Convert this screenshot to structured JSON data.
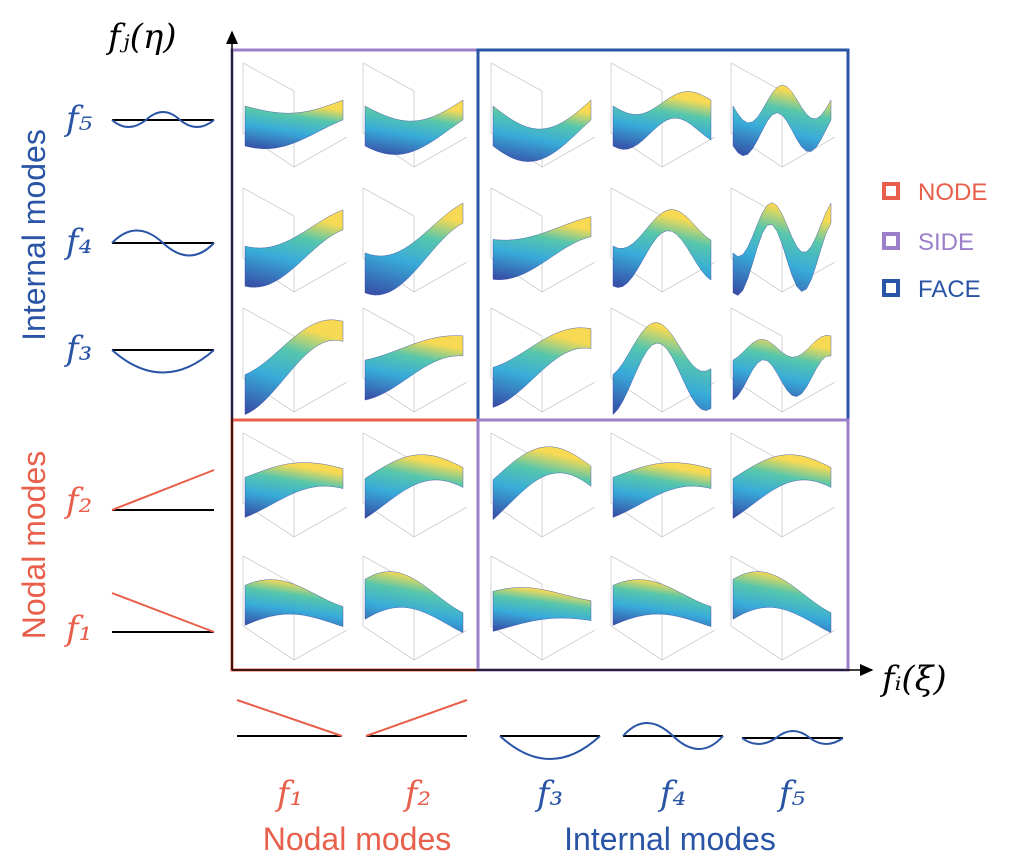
{
  "axes": {
    "y_label": "fⱼ(η)",
    "x_label": "fᵢ(ξ)"
  },
  "row_labels": [
    "f₅",
    "f₄",
    "f₃",
    "f₂",
    "f₁"
  ],
  "column_labels": [
    "f₁",
    "f₂",
    "f₃",
    "f₄",
    "f₅"
  ],
  "left_groups": [
    "Internal modes",
    "Nodal modes"
  ],
  "bottom_groups": [
    "Nodal modes",
    "Internal modes"
  ],
  "legend": [
    "NODE",
    "SIDE",
    "FACE"
  ]
}
